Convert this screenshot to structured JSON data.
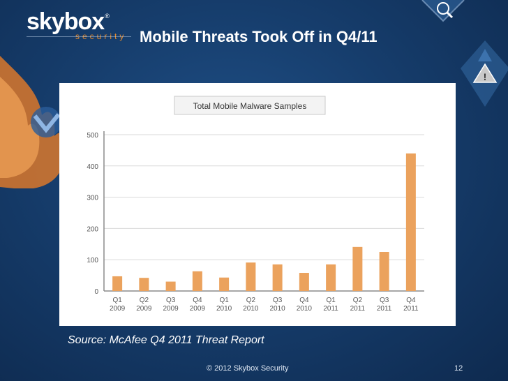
{
  "brand": {
    "name": "skybox",
    "registered": "®",
    "tagline": "security"
  },
  "slide": {
    "title": "Mobile Threats Took Off in Q4/11",
    "source": "Source: McAfee Q4  2011 Threat Report",
    "footer": "© 2012 Skybox Security",
    "page_number": "12"
  },
  "icons": [
    "flame-icon",
    "checkmark-icon",
    "magnifier-icon",
    "warning-icon"
  ],
  "colors": {
    "bar": "#eba25d",
    "accent": "#e58a2d",
    "background": "#163d6c"
  },
  "chart_data": {
    "type": "bar",
    "title": "Total Mobile Malware Samples",
    "categories": [
      "Q1\n2009",
      "Q2\n2009",
      "Q3\n2009",
      "Q4\n2009",
      "Q1\n2010",
      "Q2\n2010",
      "Q3\n2010",
      "Q4\n2010",
      "Q1\n2011",
      "Q2\n2011",
      "Q3\n2011",
      "Q4\n2011"
    ],
    "values": [
      47,
      42,
      30,
      63,
      43,
      91,
      85,
      58,
      85,
      141,
      125,
      440
    ],
    "ylim": [
      0,
      500
    ],
    "yticks": [
      "0",
      "100",
      "200",
      "300",
      "400",
      "500"
    ],
    "grid": true
  }
}
